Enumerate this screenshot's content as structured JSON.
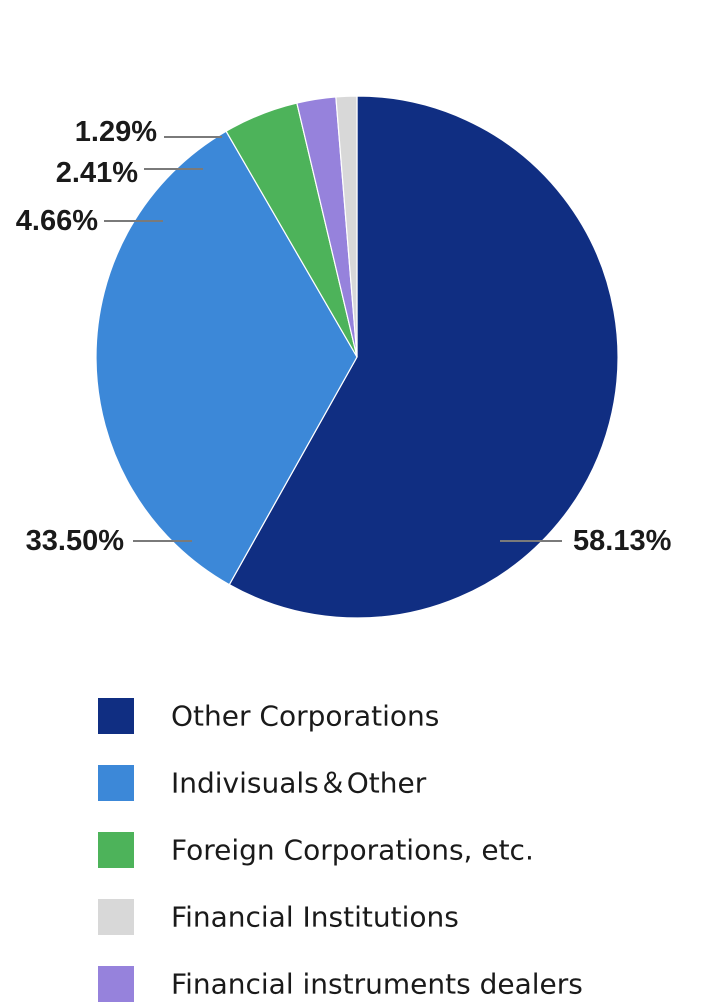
{
  "chart_data": {
    "type": "pie",
    "title": "",
    "start": "12 o'clock",
    "direction": "clockwise",
    "legend_position": "bottom",
    "slices": [
      {
        "label": "Other Corporations",
        "value": 58.13,
        "display": "58.13%",
        "color": "#102e82"
      },
      {
        "label": "Indivisuals＆Other",
        "value": 33.5,
        "display": "33.50%",
        "color": "#3c88d8"
      },
      {
        "label": "Foreign Corporations, etc.",
        "value": 4.66,
        "display": "4.66%",
        "color": "#4db35a"
      },
      {
        "label": "Financial instruments dealers",
        "value": 2.41,
        "display": "2.41%",
        "color": "#9682dc"
      },
      {
        "label": "Financial Institutions",
        "value": 1.29,
        "display": "1.29%",
        "color": "#d8d8d8"
      }
    ],
    "legend_order": [
      "Other Corporations",
      "Indivisuals＆Other",
      "Foreign Corporations, etc.",
      "Financial Institutions",
      "Financial instruments dealers"
    ]
  }
}
